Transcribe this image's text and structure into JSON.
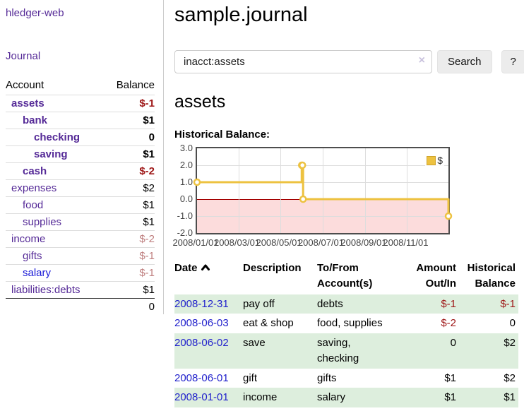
{
  "app": {
    "brand": "hledger-web",
    "nav_journal": "Journal"
  },
  "sidebar": {
    "accounts_header": {
      "account": "Account",
      "balance": "Balance"
    },
    "accounts": [
      {
        "name": "assets",
        "balance": "$-1",
        "indent": 1,
        "bold": true,
        "balance_tone": "neg",
        "link_tone": "purple"
      },
      {
        "name": "bank",
        "balance": "$1",
        "indent": 2,
        "bold": true,
        "balance_tone": "",
        "link_tone": "purple"
      },
      {
        "name": "checking",
        "balance": "0",
        "indent": 3,
        "bold": true,
        "balance_tone": "",
        "link_tone": "purple"
      },
      {
        "name": "saving",
        "balance": "$1",
        "indent": 3,
        "bold": true,
        "balance_tone": "",
        "link_tone": "purple"
      },
      {
        "name": "cash",
        "balance": "$-2",
        "indent": 2,
        "bold": true,
        "balance_tone": "neg",
        "link_tone": "purple"
      },
      {
        "name": "expenses",
        "balance": "$2",
        "indent": 1,
        "bold": false,
        "balance_tone": "",
        "link_tone": "purple"
      },
      {
        "name": "food",
        "balance": "$1",
        "indent": 2,
        "bold": false,
        "balance_tone": "",
        "link_tone": "purple"
      },
      {
        "name": "supplies",
        "balance": "$1",
        "indent": 2,
        "bold": false,
        "balance_tone": "",
        "link_tone": "purple"
      },
      {
        "name": "income",
        "balance": "$-2",
        "indent": 1,
        "bold": false,
        "balance_tone": "fneg",
        "link_tone": "purple"
      },
      {
        "name": "gifts",
        "balance": "$-1",
        "indent": 2,
        "bold": false,
        "balance_tone": "fneg",
        "link_tone": "purple"
      },
      {
        "name": "salary",
        "balance": "$-1",
        "indent": 2,
        "bold": false,
        "balance_tone": "fneg",
        "link_tone": "blue"
      },
      {
        "name": "liabilities:debts",
        "balance": "$1",
        "indent": 1,
        "bold": false,
        "balance_tone": "",
        "link_tone": "purple"
      }
    ],
    "total": "0"
  },
  "header": {
    "title": "sample.journal"
  },
  "search": {
    "value": "inacct:assets",
    "clear_icon": "×",
    "button": "Search",
    "help_button": "?"
  },
  "account_page": {
    "title": "assets",
    "chart_label": "Historical Balance:"
  },
  "chart_data": {
    "type": "line",
    "step": true,
    "title": "Historical Balance",
    "xlim": [
      "2008-01-01",
      "2008-12-31"
    ],
    "ylim": [
      -2,
      3
    ],
    "yticks": [
      3.0,
      2.0,
      1.0,
      0.0,
      -1.0,
      -2.0
    ],
    "ytick_labels": [
      "3.0",
      "2.0",
      "1.0",
      "0.0",
      "-1.0",
      "-2.0"
    ],
    "xtick_labels": [
      "2008/01/01",
      "2008/03/01",
      "2008/05/01",
      "2008/07/01",
      "2008/09/01",
      "2008/11/01"
    ],
    "grid": true,
    "legend_position": "top-right",
    "series": [
      {
        "name": "$",
        "color": "#edc240",
        "marker_fill": "#ffffff",
        "points": [
          {
            "x": "2008-01-01",
            "y": 1
          },
          {
            "x": "2008-06-01",
            "y": 2
          },
          {
            "x": "2008-06-02",
            "y": 2
          },
          {
            "x": "2008-06-03",
            "y": 0
          },
          {
            "x": "2008-12-31",
            "y": -1
          }
        ]
      }
    ],
    "negative_region_color": "#fcdcdc",
    "zero_line_color": "#a40000"
  },
  "register": {
    "columns": {
      "date": "Date",
      "description": "Description",
      "accounts_line1": "To/From",
      "accounts_line2": "Account(s)",
      "amount_line1": "Amount",
      "amount_line2": "Out/In",
      "balance_line1": "Historical",
      "balance_line2": "Balance"
    },
    "rows": [
      {
        "date": "2008-12-31",
        "description": "pay off",
        "accounts": "debts",
        "amount": "$-1",
        "balance": "$-1",
        "amount_neg": true,
        "balance_neg": true,
        "striped": true
      },
      {
        "date": "2008-06-03",
        "description": "eat & shop",
        "accounts": "food, supplies",
        "amount": "$-2",
        "balance": "0",
        "amount_neg": true,
        "balance_neg": false,
        "striped": false
      },
      {
        "date": "2008-06-02",
        "description": "save",
        "accounts": "saving, checking",
        "amount": "0",
        "balance": "$2",
        "amount_neg": false,
        "balance_neg": false,
        "striped": true
      },
      {
        "date": "2008-06-01",
        "description": "gift",
        "accounts": "gifts",
        "amount": "$1",
        "balance": "$2",
        "amount_neg": false,
        "balance_neg": false,
        "striped": false
      },
      {
        "date": "2008-01-01",
        "description": "income",
        "accounts": "salary",
        "amount": "$1",
        "balance": "$1",
        "amount_neg": false,
        "balance_neg": false,
        "striped": true
      }
    ]
  }
}
